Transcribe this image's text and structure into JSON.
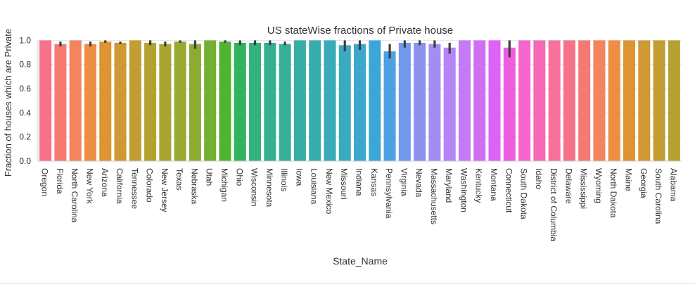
{
  "chart_data": {
    "type": "bar",
    "title": "US stateWise fractions of Private house",
    "xlabel": "State_Name",
    "ylabel": "Fraction of houses which are Private",
    "ylim": [
      0,
      1.02
    ],
    "yticks": [
      "0.0",
      "0.2",
      "0.4",
      "0.6",
      "0.8",
      "1.0"
    ],
    "grid": true,
    "legend": "none",
    "categories": [
      "Oregon",
      "Florida",
      "North Carolina",
      "New York",
      "Arizona",
      "California",
      "Tennessee",
      "Colorado",
      "New Jersey",
      "Texas",
      "Nebraska",
      "Utah",
      "Michigan",
      "Ohio",
      "Wisconsin",
      "Minnesota",
      "Illinois",
      "Iowa",
      "Louisiana",
      "New Mexico",
      "Missouri",
      "Indiana",
      "Kansas",
      "Pennsylvania",
      "Virginia",
      "Nevada",
      "Massachusetts",
      "Maryland",
      "Washington",
      "Kentucky",
      "Montana",
      "Connecticut",
      "South Dakota",
      "Idaho",
      "District of Columbia",
      "Delaware",
      "Mississippi",
      "Wyoming",
      "North Dakota",
      "Maine",
      "Georgia",
      "South Carolina",
      "Alabama"
    ],
    "values": [
      1.0,
      0.97,
      1.0,
      0.97,
      0.99,
      0.98,
      1.0,
      0.98,
      0.97,
      0.99,
      0.97,
      1.0,
      0.99,
      0.98,
      0.98,
      0.98,
      0.97,
      1.0,
      1.0,
      1.0,
      0.96,
      0.97,
      1.0,
      0.91,
      0.98,
      0.98,
      0.97,
      0.94,
      1.0,
      1.0,
      1.0,
      0.94,
      1.0,
      1.0,
      1.0,
      1.0,
      1.0,
      1.0,
      1.0,
      1.0,
      1.0,
      1.0,
      1.0
    ],
    "errors": [
      [
        1.0,
        1.0
      ],
      [
        0.95,
        0.99
      ],
      [
        1.0,
        1.0
      ],
      [
        0.95,
        0.99
      ],
      [
        0.98,
        1.0
      ],
      [
        0.97,
        0.99
      ],
      [
        1.0,
        1.0
      ],
      [
        0.96,
        1.0
      ],
      [
        0.95,
        0.99
      ],
      [
        0.98,
        1.0
      ],
      [
        0.93,
        1.0
      ],
      [
        1.0,
        1.0
      ],
      [
        0.98,
        1.0
      ],
      [
        0.96,
        1.0
      ],
      [
        0.96,
        1.0
      ],
      [
        0.96,
        1.0
      ],
      [
        0.96,
        0.99
      ],
      [
        1.0,
        1.0
      ],
      [
        1.0,
        1.0
      ],
      [
        1.0,
        1.0
      ],
      [
        0.91,
        1.0
      ],
      [
        0.92,
        1.0
      ],
      [
        1.0,
        1.0
      ],
      [
        0.85,
        0.97
      ],
      [
        0.94,
        1.0
      ],
      [
        0.96,
        1.0
      ],
      [
        0.94,
        1.0
      ],
      [
        0.89,
        0.98
      ],
      [
        1.0,
        1.0
      ],
      [
        1.0,
        1.0
      ],
      [
        1.0,
        1.0
      ],
      [
        0.86,
        1.0
      ],
      [
        1.0,
        1.0
      ],
      [
        1.0,
        1.0
      ],
      [
        1.0,
        1.0
      ],
      [
        1.0,
        1.0
      ],
      [
        1.0,
        1.0
      ],
      [
        1.0,
        1.0
      ],
      [
        1.0,
        1.0
      ],
      [
        1.0,
        1.0
      ],
      [
        1.0,
        1.0
      ],
      [
        1.0,
        1.0
      ],
      [
        1.0,
        1.0
      ]
    ],
    "colors": [
      "#f77189",
      "#f57a72",
      "#f3845e",
      "#ee8e42",
      "#de9432",
      "#cf9933",
      "#c29d31",
      "#b5a131",
      "#a8a531",
      "#9aa831",
      "#8aac31",
      "#73b031",
      "#50b331",
      "#32b45d",
      "#34b27e",
      "#35b08f",
      "#36af9b",
      "#37aea5",
      "#38adaf",
      "#39abb8",
      "#3aaac1",
      "#3ba8cc",
      "#3da6d8",
      "#4ea1e3",
      "#6f9aeb",
      "#8c92ee",
      "#a48cf3",
      "#b684f4",
      "#c47af4",
      "#d06ff4",
      "#de62f4",
      "#ec5de0",
      "#f564cf",
      "#f76ab5",
      "#f7719c",
      "#f77189",
      "#f57a72",
      "#f3845e",
      "#ee8e42",
      "#de9432",
      "#cf9933",
      "#c29d31",
      "#b5a131"
    ]
  }
}
